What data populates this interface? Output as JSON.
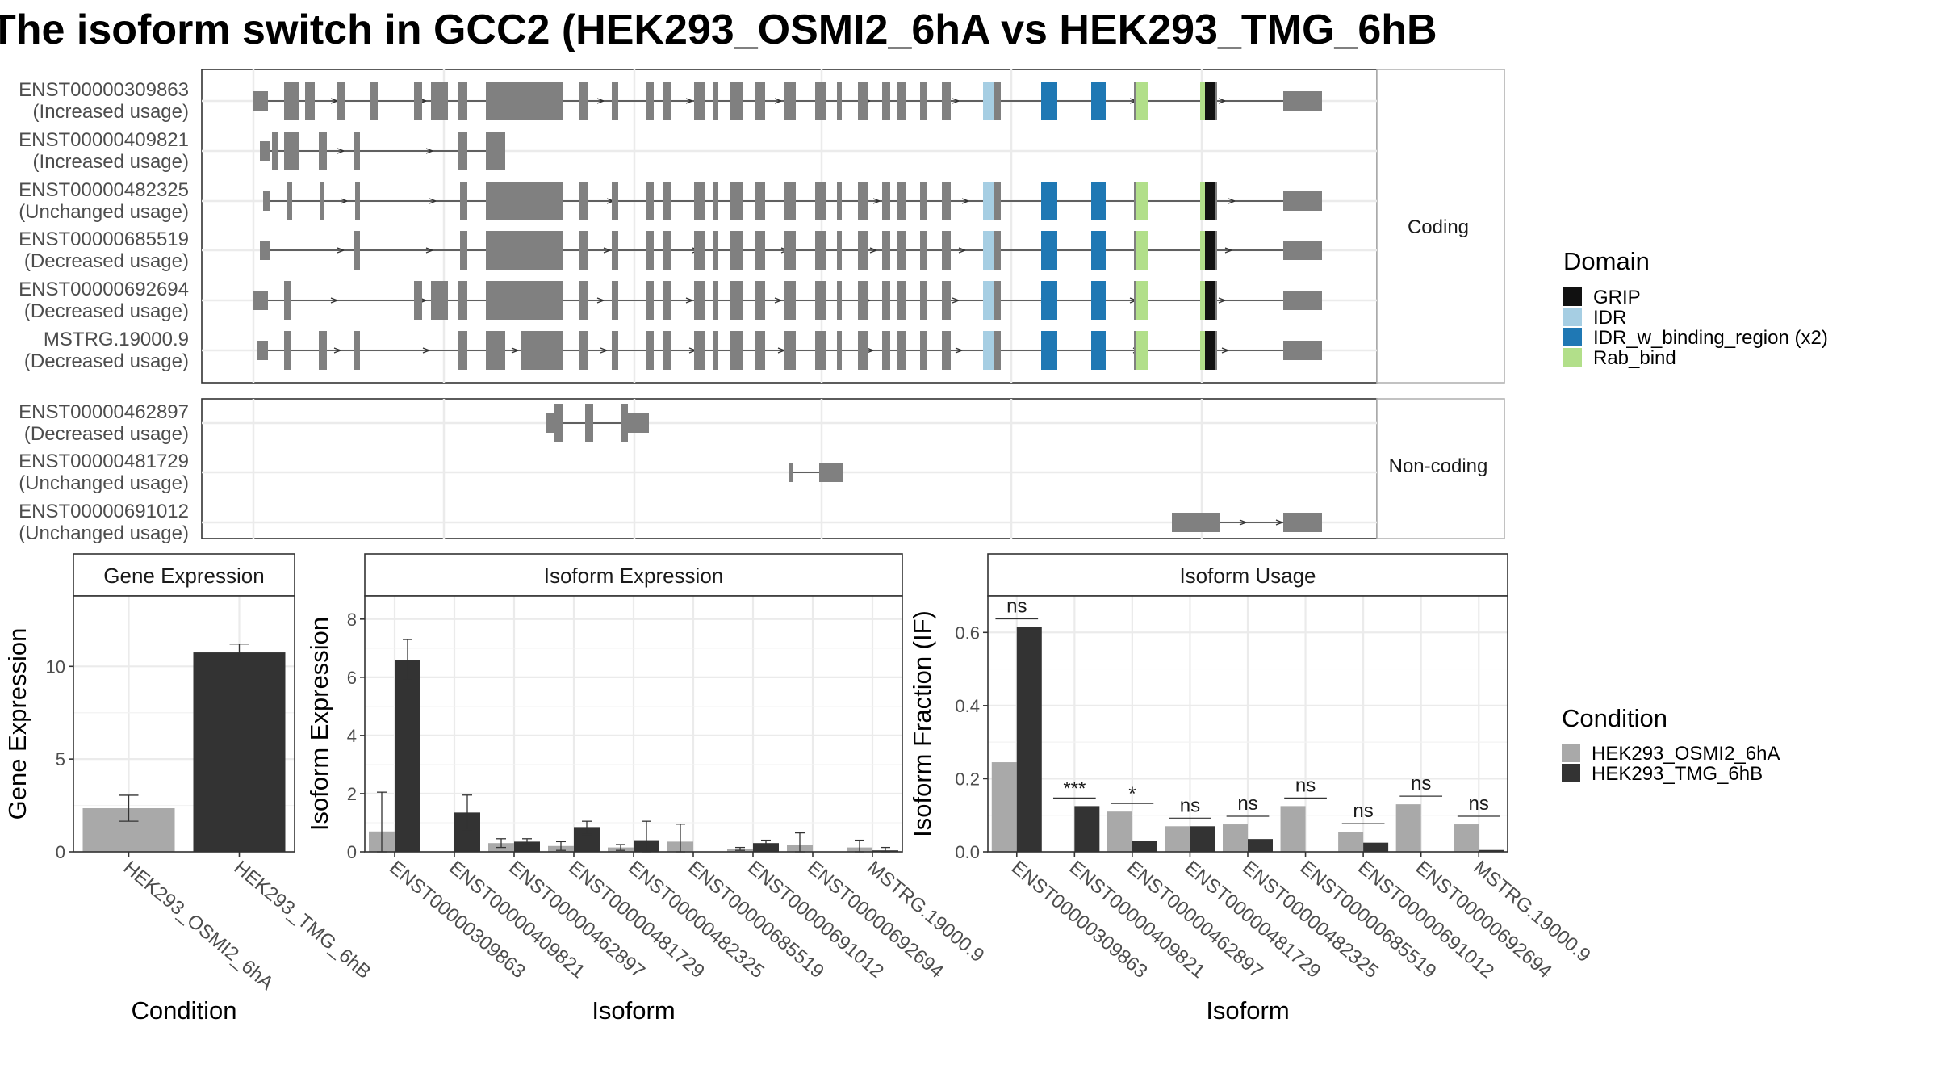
{
  "title": "The isoform switch in GCC2 (HEK293_OSMI2_6hA vs HEK293_TMG_6hB",
  "colors": {
    "exon": "#808080",
    "panel_border": "#333333",
    "grid": "#ebebeb",
    "strip_fill": "#ffffff",
    "cond_a": "#a9a9a9",
    "cond_b": "#333333"
  },
  "structure": {
    "coding_label": "Coding",
    "noncoding_label": "Non-coding",
    "coding_transcripts": [
      {
        "id": "ENST00000309863",
        "usage": "(Increased usage)"
      },
      {
        "id": "ENST00000409821",
        "usage": "(Increased usage)"
      },
      {
        "id": "ENST00000482325",
        "usage": "(Unchanged usage)"
      },
      {
        "id": "ENST00000685519",
        "usage": "(Decreased usage)"
      },
      {
        "id": "ENST00000692694",
        "usage": "(Decreased usage)"
      },
      {
        "id": "MSTRG.19000.9",
        "usage": "(Decreased usage)"
      }
    ],
    "noncoding_transcripts": [
      {
        "id": "ENST00000462897",
        "usage": "(Decreased usage)"
      },
      {
        "id": "ENST00000481729",
        "usage": "(Unchanged usage)"
      },
      {
        "id": "ENST00000691012",
        "usage": "(Unchanged usage)"
      }
    ]
  },
  "legend_domain": {
    "title": "Domain",
    "items": [
      {
        "label": "GRIP",
        "color": "#111111"
      },
      {
        "label": "IDR",
        "color": "#a6cee3"
      },
      {
        "label": "IDR_w_binding_region (x2)",
        "color": "#1f78b4"
      },
      {
        "label": "Rab_bind",
        "color": "#b2df8a"
      }
    ]
  },
  "legend_condition": {
    "title": "Condition",
    "items": [
      {
        "label": "HEK293_OSMI2_6hA",
        "color": "#a9a9a9"
      },
      {
        "label": "HEK293_TMG_6hB",
        "color": "#333333"
      }
    ]
  },
  "chart_data": [
    {
      "type": "bar",
      "title": "Gene Expression",
      "xlabel": "Condition",
      "ylabel": "Gene Expression",
      "ylim": [
        0,
        13.8
      ],
      "yticks": [
        0,
        5,
        10
      ],
      "categories": [
        "HEK293_OSMI2_6hA",
        "HEK293_TMG_6hB"
      ],
      "values": [
        2.35,
        10.75
      ],
      "errors": [
        [
          1.65,
          3.05
        ],
        [
          10.3,
          11.2
        ]
      ]
    },
    {
      "type": "bar",
      "title": "Isoform Expression",
      "xlabel": "Isoform",
      "ylabel": "Isoform Expression",
      "ylim": [
        0,
        8.8
      ],
      "yticks": [
        0,
        2,
        4,
        6,
        8
      ],
      "categories": [
        "ENST00000309863",
        "ENST00000409821",
        "ENST00000462897",
        "ENST00000481729",
        "ENST00000482325",
        "ENST00000685519",
        "ENST00000691012",
        "ENST00000692694",
        "MSTRG.19000.9"
      ],
      "series": [
        {
          "name": "HEK293_OSMI2_6hA",
          "values": [
            0.7,
            0.0,
            0.3,
            0.2,
            0.15,
            0.35,
            0.1,
            0.25,
            0.15
          ],
          "errors": [
            [
              0,
              2.05
            ],
            [
              0,
              0
            ],
            [
              0.15,
              0.45
            ],
            [
              0.05,
              0.35
            ],
            [
              0.05,
              0.25
            ],
            [
              0,
              0.95
            ],
            [
              0.05,
              0.15
            ],
            [
              0,
              0.65
            ],
            [
              0,
              0.4
            ]
          ]
        },
        {
          "name": "HEK293_TMG_6hB",
          "values": [
            6.6,
            1.35,
            0.35,
            0.85,
            0.4,
            0.0,
            0.3,
            0.0,
            0.05
          ],
          "errors": [
            [
              5.9,
              7.3
            ],
            [
              0.75,
              1.95
            ],
            [
              0.25,
              0.45
            ],
            [
              0.6,
              1.05
            ],
            [
              0,
              1.05
            ],
            [
              0,
              0
            ],
            [
              0.15,
              0.4
            ],
            [
              0,
              0
            ],
            [
              0,
              0.15
            ]
          ]
        }
      ]
    },
    {
      "type": "bar",
      "title": "Isoform Usage",
      "xlabel": "Isoform",
      "ylabel": "Isoform Fraction (IF)",
      "ylim": [
        0,
        0.7
      ],
      "yticks": [
        "0.0",
        "0.2",
        "0.4",
        "0.6"
      ],
      "categories": [
        "ENST00000309863",
        "ENST00000409821",
        "ENST00000462897",
        "ENST00000481729",
        "ENST00000482325",
        "ENST00000685519",
        "ENST00000691012",
        "ENST00000692694",
        "MSTRG.19000.9"
      ],
      "series": [
        {
          "name": "HEK293_OSMI2_6hA",
          "values": [
            0.245,
            0.0,
            0.11,
            0.07,
            0.075,
            0.125,
            0.055,
            0.13,
            0.075
          ]
        },
        {
          "name": "HEK293_TMG_6hB",
          "values": [
            0.615,
            0.125,
            0.03,
            0.07,
            0.035,
            0.0,
            0.025,
            0.0,
            0.005
          ]
        }
      ],
      "significance": [
        "ns",
        "***",
        "*",
        "ns",
        "ns",
        "ns",
        "ns",
        "ns",
        "ns"
      ]
    }
  ]
}
